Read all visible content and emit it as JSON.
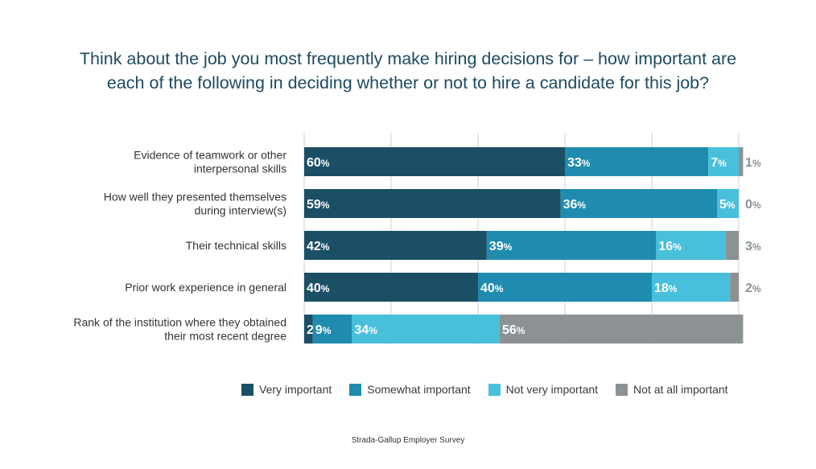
{
  "chart_data": {
    "type": "bar",
    "orientation": "horizontal",
    "stacked": true,
    "title_lines": [
      "Think about the job you most frequently make hiring decisions for – how important are",
      "each of the following in deciding whether or not to hire a candidate for this job?"
    ],
    "categories": [
      [
        "Evidence of teamwork or other",
        "interpersonal skills"
      ],
      [
        "How well they presented themselves",
        "during interview(s)"
      ],
      [
        "Their technical skills"
      ],
      [
        "Prior work experience in general"
      ],
      [
        "Rank of the institution where they obtained",
        "their most recent degree"
      ]
    ],
    "series": [
      {
        "name": "Very important",
        "color": "#1b4f66",
        "values": [
          60,
          59,
          42,
          40,
          2
        ]
      },
      {
        "name": "Somewhat important",
        "color": "#1f8caf",
        "values": [
          33,
          36,
          39,
          40,
          9
        ]
      },
      {
        "name": "Not very important",
        "color": "#48c0dc",
        "values": [
          7,
          5,
          16,
          18,
          34
        ]
      },
      {
        "name": "Not at all important",
        "color": "#8c9194",
        "values": [
          1,
          0,
          3,
          2,
          56
        ]
      }
    ],
    "unit": "%",
    "xlim": [
      0,
      100
    ],
    "grid": true,
    "legend_position": "bottom"
  },
  "source": "Strada-Gallup Employer Survey"
}
